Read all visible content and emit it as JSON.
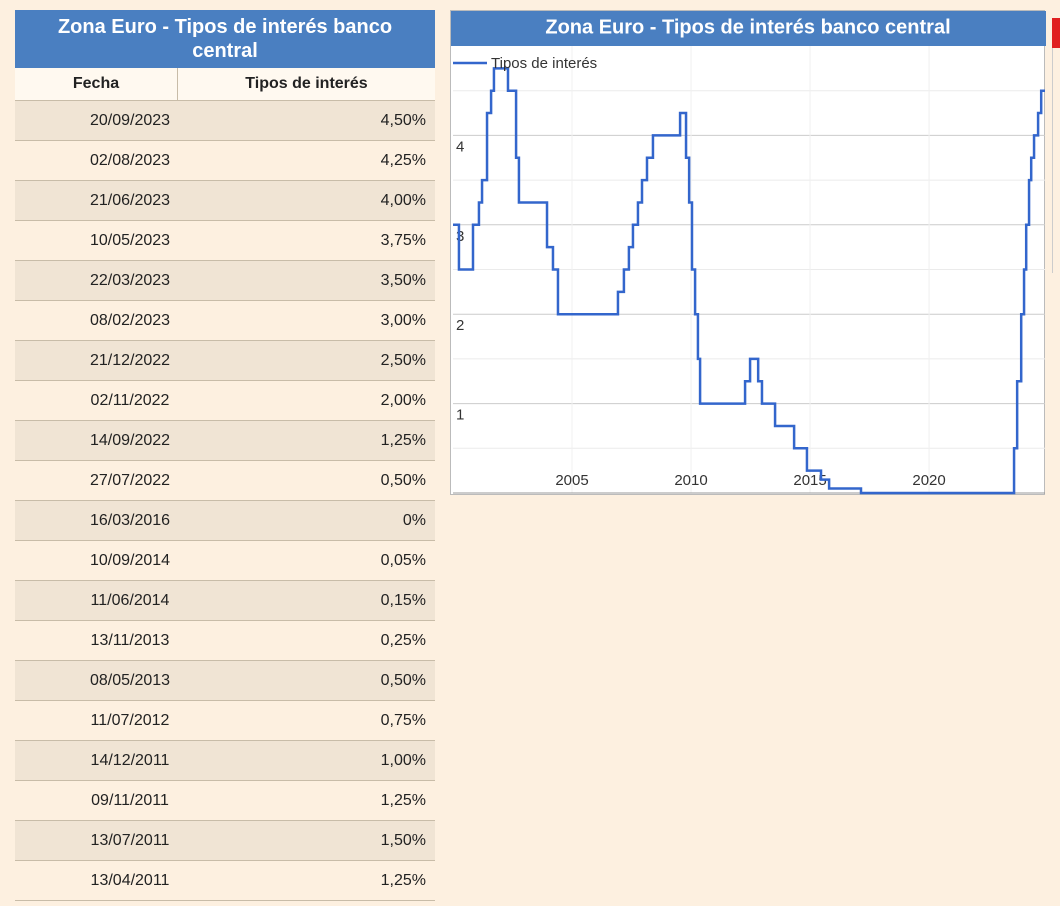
{
  "table": {
    "title": "Zona Euro - Tipos de interés banco central",
    "headers": [
      "Fecha",
      "Tipos de interés"
    ],
    "rows": [
      [
        "20/09/2023",
        "4,50%"
      ],
      [
        "02/08/2023",
        "4,25%"
      ],
      [
        "21/06/2023",
        "4,00%"
      ],
      [
        "10/05/2023",
        "3,75%"
      ],
      [
        "22/03/2023",
        "3,50%"
      ],
      [
        "08/02/2023",
        "3,00%"
      ],
      [
        "21/12/2022",
        "2,50%"
      ],
      [
        "02/11/2022",
        "2,00%"
      ],
      [
        "14/09/2022",
        "1,25%"
      ],
      [
        "27/07/2022",
        "0,50%"
      ],
      [
        "16/03/2016",
        "0%"
      ],
      [
        "10/09/2014",
        "0,05%"
      ],
      [
        "11/06/2014",
        "0,15%"
      ],
      [
        "13/11/2013",
        "0,25%"
      ],
      [
        "08/05/2013",
        "0,50%"
      ],
      [
        "11/07/2012",
        "0,75%"
      ],
      [
        "14/12/2011",
        "1,00%"
      ],
      [
        "09/11/2011",
        "1,25%"
      ],
      [
        "13/07/2011",
        "1,50%"
      ],
      [
        "13/04/2011",
        "1,25%"
      ]
    ]
  },
  "chart_data": {
    "type": "step",
    "title": "Zona Euro - Tipos de interés banco central",
    "x": [
      2000.0,
      2000.25,
      2000.84,
      2001.09,
      2001.22,
      2001.43,
      2001.6,
      2001.72,
      2002.31,
      2002.65,
      2002.77,
      2003.95,
      2004.2,
      2004.41,
      2006.93,
      2007.18,
      2007.39,
      2007.56,
      2007.77,
      2007.94,
      2008.15,
      2008.4,
      2009.54,
      2009.79,
      2009.92,
      2010.04,
      2010.17,
      2010.29,
      2010.38,
      2012.27,
      2012.48,
      2012.82,
      2012.98,
      2013.53,
      2014.33,
      2014.87,
      2015.46,
      2015.8,
      2017.14,
      2023.57,
      2023.7,
      2023.87,
      2023.99,
      2024.08,
      2024.2,
      2024.29,
      2024.41,
      2024.58,
      2024.71,
      2024.87
    ],
    "series": [
      {
        "name": "Tipos de interés",
        "color": "#3366cc",
        "values": [
          3,
          2.5,
          3,
          3.25,
          3.5,
          4.25,
          4.5,
          4.75,
          4.5,
          3.75,
          3.25,
          2.75,
          2.5,
          2,
          2.25,
          2.5,
          2.75,
          3,
          3.25,
          3.5,
          3.75,
          4,
          4.25,
          3.75,
          3.25,
          2.5,
          2,
          1.5,
          1,
          1.25,
          1.5,
          1.25,
          1,
          0.75,
          0.5,
          0.25,
          0.15,
          0.05,
          0,
          0.5,
          1.25,
          2,
          2.5,
          3,
          3.5,
          3.75,
          4,
          4.25,
          4.5,
          4.5
        ]
      }
    ],
    "xlim": [
      2000,
      2024.87
    ],
    "xticks": [
      2005,
      2010,
      2015,
      2020
    ],
    "ylim": [
      0,
      5
    ],
    "yticks": [
      1,
      2,
      3,
      4
    ],
    "y_minor_ticks": [
      0.5,
      1.5,
      2.5,
      3.5,
      4.5
    ],
    "grid": true,
    "legend": "top-left"
  }
}
